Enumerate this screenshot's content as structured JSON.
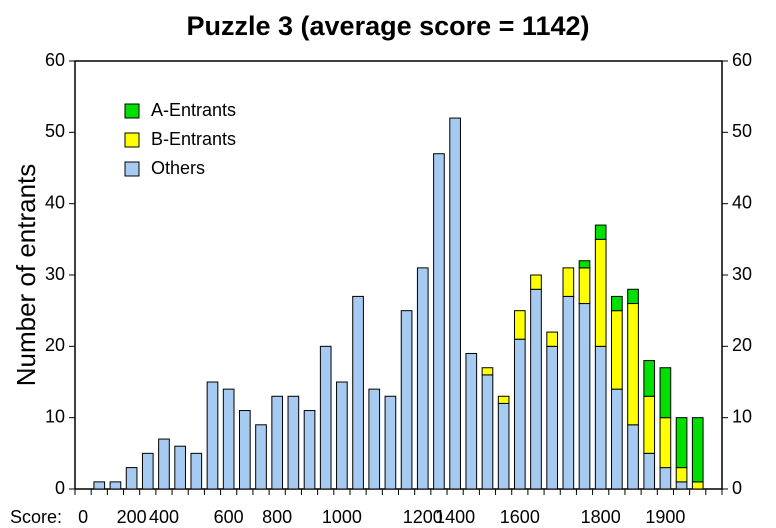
{
  "chart_data": {
    "type": "stacked_bar",
    "title": "Puzzle 3 (average score = 1142)",
    "ylabel": "Number of entrants",
    "xlabel": "Score:",
    "categories": [
      "0",
      null,
      null,
      "200",
      null,
      "400",
      null,
      null,
      null,
      "600",
      null,
      null,
      "800",
      null,
      null,
      null,
      "1000",
      null,
      null,
      null,
      null,
      "1200",
      null,
      "1400",
      null,
      null,
      null,
      "1600",
      null,
      null,
      null,
      null,
      "1800",
      null,
      null,
      null,
      "1900",
      null,
      null,
      null
    ],
    "series": [
      {
        "name": "Others",
        "color": "#a6caf0",
        "values": [
          0,
          1,
          1,
          3,
          5,
          7,
          6,
          5,
          15,
          14,
          11,
          9,
          13,
          13,
          11,
          20,
          15,
          27,
          14,
          13,
          25,
          31,
          47,
          52,
          19,
          16,
          12,
          21,
          28,
          20,
          27,
          26,
          20,
          14,
          9,
          5,
          3,
          1,
          0,
          0
        ]
      },
      {
        "name": "B-Entrants",
        "color": "#ffff00",
        "values": [
          0,
          0,
          0,
          0,
          0,
          0,
          0,
          0,
          0,
          0,
          0,
          0,
          0,
          0,
          0,
          0,
          0,
          0,
          0,
          0,
          0,
          0,
          0,
          0,
          0,
          1,
          1,
          4,
          2,
          2,
          4,
          5,
          15,
          11,
          17,
          8,
          7,
          2,
          1,
          0
        ]
      },
      {
        "name": "A-Entrants",
        "color": "#00e000",
        "values": [
          0,
          0,
          0,
          0,
          0,
          0,
          0,
          0,
          0,
          0,
          0,
          0,
          0,
          0,
          0,
          0,
          0,
          0,
          0,
          0,
          0,
          0,
          0,
          0,
          0,
          0,
          0,
          0,
          0,
          0,
          0,
          1,
          2,
          2,
          2,
          5,
          7,
          7,
          9,
          0
        ]
      }
    ],
    "ylim": [
      0,
      60
    ],
    "yticks": [
      0,
      10,
      20,
      30,
      40,
      50,
      60
    ],
    "y2lim": [
      0,
      60
    ],
    "y2ticks": [
      0,
      10,
      20,
      30,
      40,
      50,
      60
    ],
    "legend": "upper left"
  }
}
